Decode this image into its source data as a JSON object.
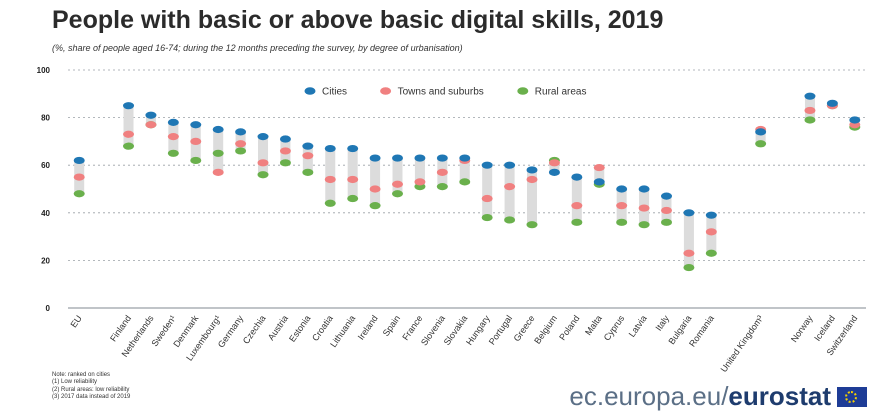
{
  "header": {
    "title": "People with basic or above basic digital skills, 2019",
    "subtitle": "(%, share of people aged 16-74; during the 12 months preceding the survey, by degree of urbanisation)"
  },
  "chart_data": {
    "type": "scatter",
    "title": "People with basic or above basic digital skills, 2019",
    "ylim": [
      0,
      100
    ],
    "yticks": [
      0,
      20,
      40,
      60,
      80,
      100
    ],
    "grid": true,
    "legend_position": "top-center",
    "categories": [
      "EU",
      "Finland",
      "Netherlands",
      "Sweden",
      "Denmark",
      "Luxembourg",
      "Germany",
      "Czechia",
      "Austria",
      "Estonia",
      "Croatia",
      "Lithuania",
      "Ireland",
      "Spain",
      "France",
      "Slovenia",
      "Slovakia",
      "Hungary",
      "Portugal",
      "Greece",
      "Belgium",
      "Poland",
      "Malta",
      "Cyprus",
      "Latvia",
      "Italy",
      "Bulgaria",
      "Romania",
      "United Kingdom",
      "Norway",
      "Iceland",
      "Switzerland"
    ],
    "category_labels": [
      "EU",
      "Finland",
      "Netherlands",
      "Sweden¹",
      "Denmark",
      "Luxembourg¹",
      "Germany",
      "Czechia",
      "Austria",
      "Estonia",
      "Croatia",
      "Lithuania",
      "Ireland",
      "Spain",
      "France",
      "Slovenia",
      "Slovakia",
      "Hungary",
      "Portugal",
      "Greece",
      "Belgium",
      "Poland",
      "Malta",
      "Cyprus",
      "Latvia",
      "Italy",
      "Bulgaria",
      "Romania",
      "United Kingdom³",
      "Norway",
      "Iceland",
      "Switzerland"
    ],
    "groups": [
      [
        0,
        0
      ],
      [
        1,
        27
      ],
      [
        28,
        28
      ],
      [
        29,
        31
      ]
    ],
    "series": [
      {
        "name": "Cities",
        "color": "#1f77b4",
        "values": [
          62,
          85,
          81,
          78,
          77,
          75,
          74,
          72,
          71,
          68,
          67,
          67,
          63,
          63,
          63,
          63,
          63,
          60,
          60,
          58,
          57,
          55,
          53,
          50,
          50,
          47,
          40,
          39,
          74,
          89,
          86,
          79
        ]
      },
      {
        "name": "Towns and suburbs",
        "color": "#f08080",
        "values": [
          55,
          73,
          77,
          72,
          70,
          57,
          69,
          61,
          66,
          64,
          54,
          54,
          50,
          52,
          53,
          57,
          62,
          46,
          51,
          54,
          61,
          43,
          59,
          43,
          42,
          41,
          23,
          32,
          75,
          83,
          85,
          77
        ]
      },
      {
        "name": "Rural areas",
        "color": "#6ab04c",
        "values": [
          48,
          68,
          77,
          65,
          62,
          65,
          66,
          56,
          61,
          57,
          44,
          46,
          43,
          48,
          51,
          51,
          53,
          38,
          37,
          35,
          62,
          36,
          52,
          36,
          35,
          36,
          17,
          23,
          69,
          79,
          85,
          76
        ]
      }
    ]
  },
  "notes": [
    "Note: ranked on cities",
    "(1) Low reliability",
    "(2) Rural areas: low reliability",
    "(3) 2017 data instead of 2019"
  ],
  "brand": {
    "url_prefix": "ec.europa.eu/",
    "bold": "eurostat"
  }
}
